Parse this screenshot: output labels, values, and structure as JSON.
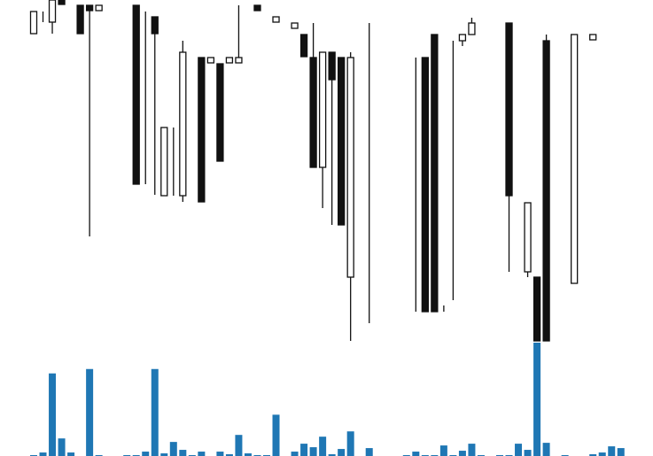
{
  "chart_data": {
    "type": "candlestick",
    "open": [
      362,
      387,
      375,
      400,
      394,
      394,
      394,
      388,
      394,
      394,
      394,
      394,
      192,
      381,
      179,
      179,
      179,
      335,
      335,
      329,
      328,
      329,
      329,
      394,
      394,
      375,
      375,
      375,
      368,
      361,
      335,
      211,
      341,
      335,
      87,
      335,
      335,
      335,
      335,
      335,
      335,
      335,
      335,
      361,
      48,
      354,
      354,
      361,
      87,
      374,
      374,
      374,
      93,
      93,
      87,
      354,
      80,
      80,
      80,
      355,
      355,
      361,
      368,
      368
    ],
    "high": [
      387,
      387,
      400,
      400,
      394,
      394,
      394,
      394,
      394,
      394,
      394,
      394,
      387,
      381,
      256,
      256,
      354,
      335,
      335,
      335,
      328,
      335,
      394,
      394,
      394,
      375,
      381,
      375,
      374,
      361,
      374,
      341,
      341,
      335,
      341,
      335,
      374,
      335,
      335,
      335,
      335,
      335,
      335,
      361,
      55,
      354,
      361,
      380,
      87,
      374,
      374,
      374,
      93,
      171,
      87,
      361,
      80,
      80,
      361,
      355,
      361,
      361,
      368,
      368
    ],
    "low": [
      362,
      375,
      362,
      395,
      394,
      362,
      133,
      388,
      394,
      394,
      394,
      192,
      192,
      180,
      179,
      179,
      172,
      335,
      172,
      329,
      218,
      329,
      329,
      394,
      388,
      375,
      375,
      375,
      368,
      336,
      211,
      165,
      146,
      146,
      15,
      335,
      35,
      335,
      335,
      335,
      335,
      48,
      48,
      48,
      48,
      61,
      348,
      361,
      87,
      374,
      374,
      93,
      93,
      87,
      15,
      15,
      80,
      80,
      80,
      355,
      355,
      361,
      368,
      368
    ],
    "close": [
      387,
      387,
      400,
      395,
      394,
      362,
      388,
      394,
      394,
      394,
      394,
      192,
      192,
      362,
      256,
      179,
      341,
      335,
      172,
      335,
      218,
      335,
      335,
      394,
      388,
      375,
      381,
      375,
      374,
      336,
      211,
      341,
      310,
      146,
      335,
      335,
      335,
      335,
      335,
      335,
      335,
      335,
      48,
      48,
      48,
      354,
      361,
      374,
      87,
      374,
      374,
      179,
      93,
      171,
      15,
      15,
      80,
      80,
      361,
      355,
      361,
      361,
      368,
      368
    ],
    "volume": [
      1,
      4,
      94,
      20,
      4,
      0,
      99,
      1,
      0,
      0,
      1,
      1,
      5,
      99,
      3,
      16,
      7,
      1,
      5,
      0,
      5,
      2,
      24,
      3,
      1,
      1,
      47,
      0,
      5,
      14,
      10,
      22,
      2,
      8,
      28,
      0,
      9,
      0,
      0,
      0,
      1,
      5,
      1,
      1,
      12,
      1,
      6,
      14,
      1,
      0,
      1,
      1,
      14,
      7,
      129,
      15,
      0,
      1,
      0,
      0,
      2,
      4,
      11,
      9
    ],
    "up_color": "#ffffff",
    "down_color": "#111111",
    "volume_color": "#1f77b4",
    "ylim": [
      0,
      400
    ],
    "volume_ylim": [
      0,
      130
    ]
  }
}
